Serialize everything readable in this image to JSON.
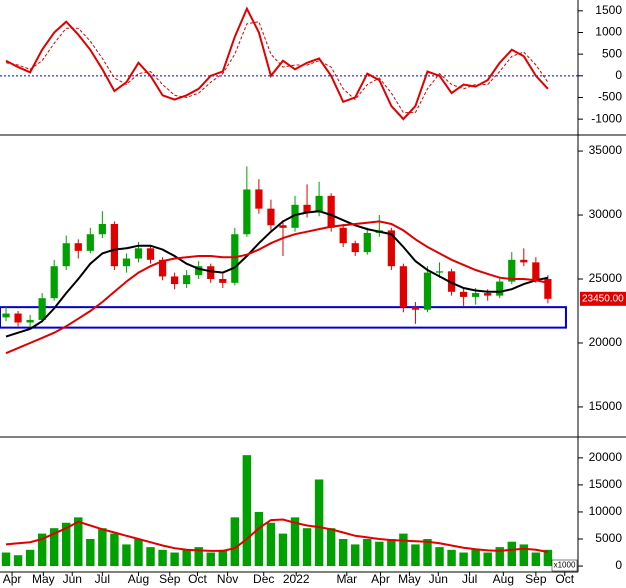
{
  "chart_data": [
    {
      "type": "line",
      "xlim": [
        0,
        48
      ],
      "ylim": [
        -1320,
        1750
      ],
      "yticks": [
        -1000,
        -500,
        0,
        500,
        1000,
        1500
      ],
      "hline": {
        "value": 0,
        "color": "#0000cc"
      },
      "series": [
        {
          "color": "#e00000",
          "dash": false,
          "values": [
            350,
            200,
            80,
            600,
            1000,
            1250,
            950,
            600,
            150,
            -350,
            -150,
            300,
            0,
            -450,
            -550,
            -450,
            -300,
            0,
            100,
            900,
            1550,
            1000,
            0,
            350,
            150,
            300,
            400,
            0,
            -600,
            -500,
            50,
            -100,
            -700,
            -1000,
            -700,
            100,
            0,
            -400,
            -200,
            -250,
            -100,
            300,
            600,
            450,
            0,
            -300
          ]
        },
        {
          "color": "#e00000",
          "dash": true,
          "values": [
            300,
            250,
            150,
            350,
            750,
            1100,
            1100,
            800,
            400,
            -50,
            -200,
            50,
            100,
            -200,
            -450,
            -500,
            -400,
            -150,
            50,
            500,
            1200,
            1250,
            500,
            200,
            250,
            250,
            350,
            200,
            -300,
            -550,
            -200,
            -50,
            -400,
            -850,
            -850,
            -300,
            50,
            -200,
            -300,
            -200,
            -200,
            100,
            450,
            550,
            250,
            -150
          ]
        }
      ]
    },
    {
      "type": "candlestick",
      "xlim": [
        0,
        48
      ],
      "ylim": [
        12650,
        36100
      ],
      "yticks": [
        15000,
        20000,
        25000,
        30000,
        35000
      ],
      "up_color": "#00a000",
      "down_color": "#e00000",
      "open": [
        22000,
        22300,
        21600,
        21800,
        23500,
        26000,
        27800,
        27200,
        28500,
        29300,
        26000,
        26600,
        27400,
        26500,
        25200,
        24600,
        25300,
        26000,
        25000,
        24700,
        28500,
        32000,
        30500,
        29200,
        29000,
        30800,
        30200,
        31500,
        29000,
        27800,
        27100,
        28600,
        28800,
        26000,
        22800,
        22600,
        25500,
        25600,
        24000,
        23600,
        23900,
        23700,
        24800,
        26500,
        26300,
        25000
      ],
      "high": [
        22800,
        22500,
        22200,
        23900,
        26500,
        28400,
        28100,
        29000,
        30300,
        29500,
        27000,
        27900,
        27600,
        26700,
        25500,
        25700,
        26400,
        26200,
        25400,
        29000,
        33800,
        32800,
        31200,
        29600,
        31500,
        32400,
        32600,
        31700,
        29300,
        28000,
        29000,
        30000,
        29000,
        26200,
        23200,
        26000,
        26300,
        25800,
        24300,
        24300,
        24200,
        25200,
        27100,
        27400,
        26700,
        25300
      ],
      "low": [
        21700,
        21300,
        21200,
        21600,
        23300,
        25700,
        26600,
        27000,
        28200,
        25700,
        25500,
        26300,
        26200,
        24900,
        24200,
        24300,
        25000,
        24700,
        24300,
        24500,
        28300,
        30100,
        28800,
        26800,
        28700,
        29800,
        29900,
        28700,
        27500,
        26800,
        26900,
        28300,
        25700,
        22400,
        21500,
        22400,
        25100,
        23700,
        22900,
        23000,
        23300,
        23500,
        24600,
        26000,
        24700,
        23100
      ],
      "close": [
        22300,
        21600,
        21800,
        23500,
        26000,
        27800,
        27200,
        28500,
        29300,
        26000,
        26600,
        27400,
        26500,
        25200,
        24600,
        25300,
        26000,
        25000,
        24700,
        28500,
        32000,
        30500,
        29200,
        29000,
        30800,
        30200,
        31500,
        29000,
        27800,
        27100,
        28600,
        28800,
        26000,
        22800,
        22600,
        25500,
        25600,
        24000,
        23600,
        23900,
        23700,
        24800,
        26500,
        26300,
        25000,
        23450
      ],
      "value_labels": {
        "last": "23450.00"
      },
      "overlays": [
        {
          "color": "#000000",
          "values": [
            20500,
            20800,
            21100,
            21700,
            22700,
            23900,
            25000,
            26200,
            27000,
            27300,
            27400,
            27600,
            27600,
            27300,
            26800,
            26200,
            25800,
            25600,
            25500,
            25900,
            26800,
            27800,
            28700,
            29500,
            30000,
            30200,
            30300,
            30000,
            29600,
            29200,
            28900,
            28700,
            28500,
            27500,
            26400,
            25700,
            25200,
            24700,
            24300,
            24100,
            24000,
            24000,
            24200,
            24600,
            24900,
            25100
          ]
        },
        {
          "color": "#e00000",
          "values": [
            19200,
            19600,
            20000,
            20400,
            20800,
            21300,
            21900,
            22500,
            23200,
            24000,
            24800,
            25500,
            26000,
            26400,
            26600,
            26700,
            26800,
            26800,
            26700,
            26700,
            26900,
            27300,
            27800,
            28200,
            28500,
            28700,
            28900,
            29100,
            29200,
            29300,
            29400,
            29500,
            29300,
            28800,
            28100,
            27500,
            27000,
            26500,
            26100,
            25700,
            25400,
            25100,
            25000,
            25000,
            24900,
            24700
          ]
        }
      ],
      "zone": {
        "x": [
          0,
          47
        ],
        "y": [
          21200,
          22800
        ],
        "color": "#0000cc"
      }
    },
    {
      "type": "bar",
      "xlim": [
        0,
        48
      ],
      "ylim": [
        -1100,
        23300
      ],
      "yticks": [
        0,
        5000,
        10000,
        15000,
        20000
      ],
      "unit_label": "x1000",
      "color": "#00a000",
      "values": [
        2500,
        2000,
        3000,
        6000,
        7000,
        8000,
        9000,
        5000,
        7000,
        6000,
        4000,
        5000,
        3500,
        3000,
        2500,
        3000,
        3500,
        2500,
        3000,
        9000,
        20500,
        10000,
        8000,
        6000,
        9000,
        7000,
        16000,
        7000,
        5000,
        4000,
        5000,
        4500,
        5000,
        6000,
        4000,
        5000,
        3500,
        3000,
        2500,
        3000,
        2500,
        3500,
        4500,
        4000,
        2500,
        3000
      ],
      "overlays": [
        {
          "color": "#e00000",
          "values": [
            4000,
            4200,
            4400,
            5000,
            6000,
            7000,
            8200,
            7500,
            6800,
            6200,
            5600,
            5000,
            4400,
            3800,
            3300,
            3000,
            2900,
            2800,
            2800,
            3300,
            5000,
            7000,
            8500,
            8600,
            8000,
            7500,
            7200,
            6800,
            6200,
            5600,
            5300,
            5000,
            4800,
            4700,
            4600,
            4500,
            4200,
            3800,
            3400,
            3100,
            2900,
            2800,
            3000,
            3200,
            3000,
            2600
          ]
        }
      ],
      "xticks": [
        {
          "value": 1.0,
          "label": "Apr"
        },
        {
          "value": 3.6,
          "label": "May"
        },
        {
          "value": 6.0,
          "label": "Jun"
        },
        {
          "value": 8.5,
          "label": "Jul"
        },
        {
          "value": 11.5,
          "label": "Aug"
        },
        {
          "value": 14.1,
          "label": "Sep"
        },
        {
          "value": 16.4,
          "label": "Oct"
        },
        {
          "value": 18.9,
          "label": "Nov"
        },
        {
          "value": 21.9,
          "label": "Dec"
        },
        {
          "value": 24.6,
          "label": "2022"
        },
        {
          "value": 28.8,
          "label": "Mar"
        },
        {
          "value": 31.6,
          "label": "Apr"
        },
        {
          "value": 34.0,
          "label": "May"
        },
        {
          "value": 36.4,
          "label": "Jun"
        },
        {
          "value": 39.0,
          "label": "Jul"
        },
        {
          "value": 41.8,
          "label": "Aug"
        },
        {
          "value": 44.5,
          "label": "Sep"
        },
        {
          "value": 46.9,
          "label": "Oct"
        }
      ]
    }
  ]
}
